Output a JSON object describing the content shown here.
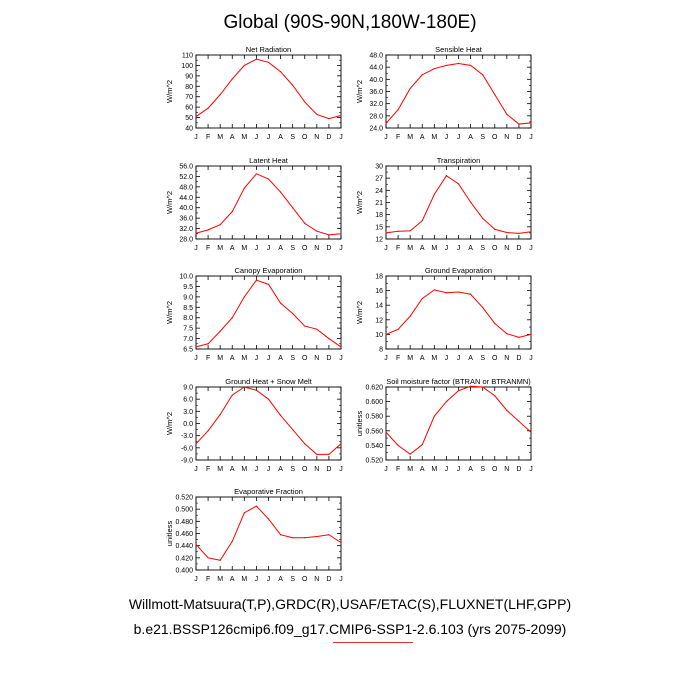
{
  "title": "Global (90S-90N,180W-180E)",
  "footer": {
    "line1": "Willmott-Matsuura(T,P),GRDC(R),USAF/ETAC(S),FLUXNET(LHF,GPP)",
    "line2": "b.e21.BSSP126cmip6.f09_g17.CMIP6-SSP1-2.6.103 (yrs 2075-2099)"
  },
  "colors": {
    "series": "#ff0000",
    "axis": "#000000",
    "accent_underline": "#e23232"
  },
  "chart_data": [
    {
      "type": "line",
      "title": "Net Radiation",
      "ylabel": "W/m^2",
      "x": [
        "J",
        "F",
        "M",
        "A",
        "M",
        "J",
        "J",
        "A",
        "S",
        "O",
        "N",
        "D",
        "J"
      ],
      "values": [
        51,
        59,
        72,
        87,
        100,
        106,
        103,
        94,
        81,
        65,
        53,
        49,
        52
      ],
      "ylim": [
        40,
        110
      ],
      "yticks": [
        "40",
        "50",
        "60",
        "70",
        "80",
        "90",
        "100",
        "110"
      ]
    },
    {
      "type": "line",
      "title": "Sensible Heat",
      "ylabel": "W/m^2",
      "x": [
        "J",
        "F",
        "M",
        "A",
        "M",
        "J",
        "J",
        "A",
        "S",
        "O",
        "N",
        "D",
        "J"
      ],
      "values": [
        25.5,
        30,
        37,
        41.5,
        43.5,
        44.6,
        45.2,
        44.6,
        41.5,
        35,
        28.5,
        25.3,
        25.7
      ],
      "ylim": [
        24,
        48
      ],
      "yticks": [
        "24.0",
        "28.0",
        "32.0",
        "36.0",
        "40.0",
        "44.0",
        "48.0"
      ]
    },
    {
      "type": "line",
      "title": "Latent Heat",
      "ylabel": "W/m^2",
      "x": [
        "J",
        "F",
        "M",
        "A",
        "M",
        "J",
        "J",
        "A",
        "S",
        "O",
        "N",
        "D",
        "J"
      ],
      "values": [
        30.2,
        31.5,
        33.5,
        38.5,
        47.5,
        53,
        51,
        46,
        40,
        34,
        31,
        29.6,
        30
      ],
      "ylim": [
        28,
        56
      ],
      "yticks": [
        "28.0",
        "32.0",
        "36.0",
        "40.0",
        "44.0",
        "48.0",
        "52.0",
        "56.0"
      ]
    },
    {
      "type": "line",
      "title": "Transpiration",
      "ylabel": "W/m^2",
      "x": [
        "J",
        "F",
        "M",
        "A",
        "M",
        "J",
        "J",
        "A",
        "S",
        "O",
        "N",
        "D",
        "J"
      ],
      "values": [
        13.5,
        13.9,
        14,
        16.5,
        23,
        27.6,
        25.6,
        21.1,
        17.1,
        14.4,
        13.6,
        13.4,
        13.8
      ],
      "ylim": [
        12,
        30
      ],
      "yticks": [
        "12",
        "15",
        "18",
        "21",
        "24",
        "27",
        "30"
      ]
    },
    {
      "type": "line",
      "title": "Canopy Evaporation",
      "ylabel": "W/m^2",
      "x": [
        "J",
        "F",
        "M",
        "A",
        "M",
        "J",
        "J",
        "A",
        "S",
        "O",
        "N",
        "D",
        "J"
      ],
      "values": [
        6.6,
        6.75,
        7.35,
        8.0,
        9.0,
        9.8,
        9.6,
        8.7,
        8.2,
        7.6,
        7.45,
        7.0,
        6.6
      ],
      "ylim": [
        6.5,
        10.0
      ],
      "yticks": [
        "6.5",
        "7.0",
        "7.5",
        "8.0",
        "8.5",
        "9.0",
        "9.5",
        "10.0"
      ]
    },
    {
      "type": "line",
      "title": "Ground Evaporation",
      "ylabel": "W/m^2",
      "x": [
        "J",
        "F",
        "M",
        "A",
        "M",
        "J",
        "J",
        "A",
        "S",
        "O",
        "N",
        "D",
        "J"
      ],
      "values": [
        10.0,
        10.7,
        12.5,
        14.9,
        16.1,
        15.7,
        15.8,
        15.5,
        13.7,
        11.5,
        10.1,
        9.6,
        10.0
      ],
      "ylim": [
        8,
        18
      ],
      "yticks": [
        "8",
        "10",
        "12",
        "14",
        "16",
        "18"
      ]
    },
    {
      "type": "line",
      "title": "Ground Heat + Snow Melt",
      "ylabel": "W/m^2",
      "x": [
        "J",
        "F",
        "M",
        "A",
        "M",
        "J",
        "J",
        "A",
        "S",
        "O",
        "N",
        "D",
        "J"
      ],
      "values": [
        -5.0,
        -1.8,
        2.2,
        7.0,
        9.0,
        8.2,
        6.0,
        2.0,
        -1.5,
        -5.0,
        -7.6,
        -7.6,
        -5.0
      ],
      "ylim": [
        -9,
        9
      ],
      "yticks": [
        "-9.0",
        "-6.0",
        "-3.0",
        "0.0",
        "3.0",
        "6.0",
        "9.0"
      ]
    },
    {
      "type": "line",
      "title": "Soil moisture factor (BTRAN or BTRANMN)",
      "ylabel": "unitless",
      "x": [
        "J",
        "F",
        "M",
        "A",
        "M",
        "J",
        "J",
        "A",
        "S",
        "O",
        "N",
        "D",
        "J"
      ],
      "values": [
        0.558,
        0.54,
        0.528,
        0.541,
        0.58,
        0.6,
        0.615,
        0.621,
        0.62,
        0.608,
        0.588,
        0.573,
        0.558
      ],
      "ylim": [
        0.52,
        0.62
      ],
      "yticks": [
        "0.520",
        "0.540",
        "0.560",
        "0.580",
        "0.600",
        "0.620"
      ]
    },
    {
      "type": "line",
      "title": "Evaporative Fraction",
      "ylabel": "unitless",
      "x": [
        "J",
        "F",
        "M",
        "A",
        "M",
        "J",
        "J",
        "A",
        "S",
        "O",
        "N",
        "D",
        "J"
      ],
      "values": [
        0.442,
        0.42,
        0.416,
        0.447,
        0.494,
        0.505,
        0.484,
        0.458,
        0.453,
        0.453,
        0.455,
        0.458,
        0.445
      ],
      "ylim": [
        0.4,
        0.52
      ],
      "yticks": [
        "0.400",
        "0.420",
        "0.440",
        "0.460",
        "0.480",
        "0.500",
        "0.520"
      ]
    }
  ]
}
